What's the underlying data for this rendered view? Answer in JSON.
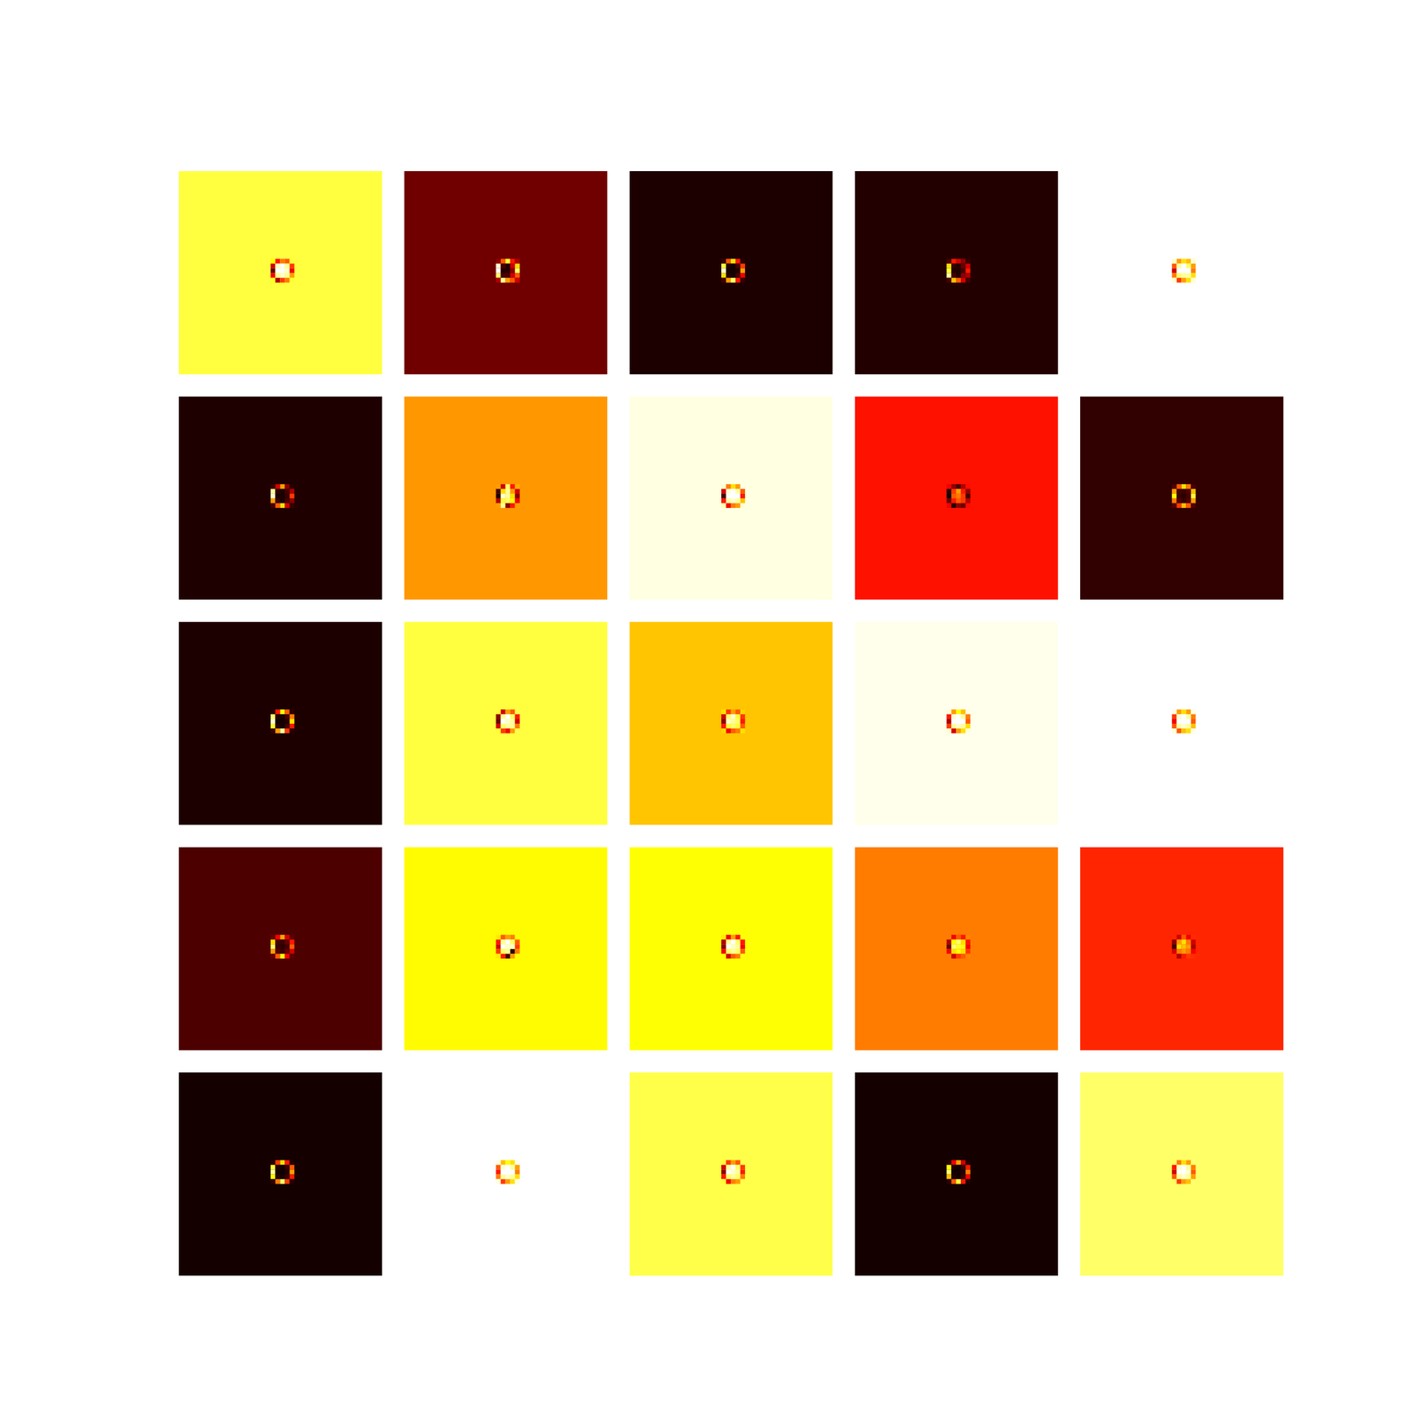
{
  "chart_data": {
    "type": "heatmap",
    "color": "hot",
    "zlim": [
      0,
      1
    ],
    "tick_labels": false,
    "panels": [
      {
        "background": 0.81,
        "cells": [
          [
            0.75,
            0.4,
            0.55,
            0.5,
            0.8
          ],
          [
            0.3,
            0.95,
            1.0,
            0.9,
            0.45
          ],
          [
            0.15,
            1.0,
            1.0,
            0.95,
            0.35
          ],
          [
            0.35,
            0.9,
            0.95,
            0.9,
            0.6
          ],
          [
            0.78,
            0.25,
            0.45,
            0.55,
            0.8
          ]
        ]
      },
      {
        "background": 0.16,
        "cells": [
          [
            0.2,
            0.5,
            0.8,
            0.4,
            0.25
          ],
          [
            0.95,
            0.1,
            0.05,
            0.3,
            0.7
          ],
          [
            1.0,
            0.05,
            0.05,
            0.2,
            0.85
          ],
          [
            0.85,
            0.1,
            0.1,
            0.3,
            0.5
          ],
          [
            0.25,
            0.9,
            0.6,
            0.5,
            0.3
          ]
        ]
      },
      {
        "background": 0.04,
        "cells": [
          [
            0.08,
            0.5,
            0.7,
            0.4,
            0.06
          ],
          [
            0.8,
            0.05,
            0.03,
            0.1,
            0.45
          ],
          [
            0.95,
            0.03,
            0.03,
            0.05,
            0.6
          ],
          [
            0.7,
            0.05,
            0.03,
            0.1,
            0.35
          ],
          [
            0.1,
            0.6,
            0.85,
            0.4,
            0.08
          ]
        ]
      },
      {
        "background": 0.05,
        "cells": [
          [
            0.1,
            0.4,
            0.3,
            0.2,
            0.08
          ],
          [
            0.7,
            0.08,
            0.05,
            0.15,
            0.3
          ],
          [
            0.8,
            0.05,
            0.05,
            0.1,
            0.4
          ],
          [
            0.9,
            0.1,
            0.05,
            0.2,
            0.25
          ],
          [
            0.1,
            0.65,
            0.5,
            0.3,
            0.1
          ]
        ]
      },
      {
        "background": 1.0,
        "cells": [
          [
            0.95,
            0.6,
            0.7,
            0.65,
            0.95
          ],
          [
            0.5,
            0.9,
            1.0,
            0.85,
            0.6
          ],
          [
            0.3,
            1.0,
            1.0,
            1.0,
            0.55
          ],
          [
            0.55,
            0.85,
            0.9,
            0.9,
            0.7
          ],
          [
            0.95,
            0.45,
            0.6,
            0.7,
            0.95
          ]
        ]
      },
      {
        "background": 0.045,
        "cells": [
          [
            0.08,
            0.3,
            0.6,
            0.2,
            0.06
          ],
          [
            0.9,
            0.06,
            0.04,
            0.1,
            0.25
          ],
          [
            0.95,
            0.04,
            0.04,
            0.08,
            0.45
          ],
          [
            0.6,
            0.08,
            0.04,
            0.1,
            0.2
          ],
          [
            0.1,
            0.5,
            0.7,
            0.3,
            0.08
          ]
        ]
      },
      {
        "background": 0.59,
        "cells": [
          [
            0.6,
            0.3,
            0.85,
            0.4,
            0.62
          ],
          [
            0.1,
            0.7,
            0.9,
            0.6,
            0.3
          ],
          [
            0.05,
            0.95,
            0.9,
            0.7,
            0.2
          ],
          [
            0.25,
            0.8,
            0.85,
            0.75,
            0.35
          ],
          [
            0.6,
            0.9,
            0.2,
            0.4,
            0.6
          ]
        ]
      },
      {
        "background": 0.97,
        "cells": [
          [
            0.95,
            0.55,
            0.7,
            0.6,
            0.97
          ],
          [
            0.3,
            0.95,
            1.0,
            0.9,
            0.5
          ],
          [
            0.1,
            1.0,
            1.0,
            1.0,
            0.4
          ],
          [
            0.4,
            0.9,
            0.95,
            0.9,
            0.65
          ],
          [
            0.92,
            0.35,
            0.55,
            0.6,
            0.95
          ]
        ]
      },
      {
        "background": 0.39,
        "cells": [
          [
            0.35,
            0.2,
            0.1,
            0.25,
            0.38
          ],
          [
            0.05,
            0.45,
            0.6,
            0.4,
            0.2
          ],
          [
            0.02,
            0.5,
            0.55,
            0.45,
            0.1
          ],
          [
            0.15,
            0.4,
            0.5,
            0.45,
            0.25
          ],
          [
            0.35,
            0.05,
            0.2,
            0.15,
            0.38
          ]
        ]
      },
      {
        "background": 0.07,
        "cells": [
          [
            0.12,
            0.5,
            0.7,
            0.55,
            0.1
          ],
          [
            0.6,
            0.1,
            0.08,
            0.12,
            0.65
          ],
          [
            0.75,
            0.08,
            0.06,
            0.1,
            0.8
          ],
          [
            0.55,
            0.12,
            0.08,
            0.12,
            0.6
          ],
          [
            0.12,
            0.45,
            0.65,
            0.5,
            0.12
          ]
        ]
      },
      {
        "background": 0.04,
        "cells": [
          [
            0.06,
            0.4,
            0.75,
            0.5,
            0.06
          ],
          [
            0.85,
            0.05,
            0.03,
            0.1,
            0.55
          ],
          [
            0.95,
            0.03,
            0.03,
            0.05,
            0.7
          ],
          [
            0.8,
            0.05,
            0.03,
            0.1,
            0.4
          ],
          [
            0.08,
            0.6,
            0.9,
            0.45,
            0.06
          ]
        ]
      },
      {
        "background": 0.81,
        "cells": [
          [
            0.8,
            0.3,
            0.6,
            0.5,
            0.82
          ],
          [
            0.2,
            0.9,
            1.0,
            0.85,
            0.4
          ],
          [
            0.15,
            1.0,
            0.95,
            0.9,
            0.3
          ],
          [
            0.3,
            0.85,
            0.9,
            0.9,
            0.55
          ],
          [
            0.8,
            0.45,
            0.35,
            0.6,
            0.82
          ]
        ]
      },
      {
        "background": 0.66,
        "cells": [
          [
            0.7,
            0.45,
            0.6,
            0.5,
            0.68
          ],
          [
            0.3,
            0.85,
            0.95,
            0.8,
            0.45
          ],
          [
            0.2,
            0.95,
            0.9,
            0.85,
            0.4
          ],
          [
            0.4,
            0.8,
            0.85,
            0.8,
            0.5
          ],
          [
            0.68,
            0.35,
            0.5,
            0.55,
            0.7
          ]
        ]
      },
      {
        "background": 0.98,
        "cells": [
          [
            0.96,
            0.6,
            0.75,
            0.65,
            0.97
          ],
          [
            0.4,
            0.95,
            1.0,
            0.9,
            0.55
          ],
          [
            0.25,
            1.0,
            1.0,
            1.0,
            0.5
          ],
          [
            0.45,
            0.9,
            0.95,
            0.9,
            0.7
          ],
          [
            0.95,
            0.3,
            0.6,
            0.7,
            0.96
          ]
        ]
      },
      {
        "background": 1.0,
        "cells": [
          [
            0.97,
            0.6,
            0.7,
            0.6,
            0.97
          ],
          [
            0.45,
            0.95,
            1.0,
            0.9,
            0.55
          ],
          [
            0.35,
            1.0,
            1.0,
            1.0,
            0.5
          ],
          [
            0.5,
            0.9,
            0.95,
            0.9,
            0.65
          ],
          [
            0.96,
            0.5,
            0.65,
            0.7,
            0.97
          ]
        ]
      },
      {
        "background": 0.11,
        "cells": [
          [
            0.15,
            0.35,
            0.6,
            0.3,
            0.14
          ],
          [
            0.7,
            0.1,
            0.08,
            0.15,
            0.4
          ],
          [
            0.85,
            0.08,
            0.06,
            0.1,
            0.5
          ],
          [
            0.6,
            0.12,
            0.08,
            0.15,
            0.3
          ],
          [
            0.14,
            0.5,
            0.75,
            0.35,
            0.13
          ]
        ]
      },
      {
        "background": 0.74,
        "cells": [
          [
            0.72,
            0.5,
            0.6,
            0.55,
            0.74
          ],
          [
            0.4,
            0.9,
            1.0,
            0.85,
            0.5
          ],
          [
            0.3,
            1.0,
            0.95,
            0.95,
            0.45
          ],
          [
            0.45,
            0.85,
            0.9,
            0.05,
            0.55
          ],
          [
            0.72,
            0.4,
            0.1,
            0.6,
            0.74
          ]
        ]
      },
      {
        "background": 0.75,
        "cells": [
          [
            0.72,
            0.35,
            0.6,
            0.4,
            0.76
          ],
          [
            0.25,
            0.9,
            1.0,
            0.85,
            0.4
          ],
          [
            0.2,
            1.0,
            0.95,
            0.9,
            0.35
          ],
          [
            0.35,
            0.85,
            0.9,
            0.85,
            0.5
          ],
          [
            0.74,
            0.3,
            0.5,
            0.55,
            0.76
          ]
        ]
      },
      {
        "background": 0.55,
        "cells": [
          [
            0.55,
            0.35,
            0.5,
            0.4,
            0.56
          ],
          [
            0.25,
            0.75,
            0.85,
            0.7,
            0.4
          ],
          [
            0.15,
            0.85,
            0.8,
            0.75,
            0.35
          ],
          [
            0.35,
            0.7,
            0.75,
            0.7,
            0.45
          ],
          [
            0.55,
            0.3,
            0.45,
            0.5,
            0.56
          ]
        ]
      },
      {
        "background": 0.42,
        "cells": [
          [
            0.42,
            0.3,
            0.5,
            0.35,
            0.43
          ],
          [
            0.2,
            0.6,
            0.7,
            0.55,
            0.3
          ],
          [
            0.1,
            0.7,
            0.65,
            0.6,
            0.25
          ],
          [
            0.3,
            0.55,
            0.6,
            0.55,
            0.35
          ],
          [
            0.42,
            0.25,
            0.4,
            0.45,
            0.43
          ]
        ]
      },
      {
        "background": 0.03,
        "cells": [
          [
            0.06,
            0.45,
            0.7,
            0.4,
            0.05
          ],
          [
            0.8,
            0.04,
            0.03,
            0.08,
            0.5
          ],
          [
            0.9,
            0.03,
            0.02,
            0.05,
            0.6
          ],
          [
            0.75,
            0.05,
            0.03,
            0.08,
            0.4
          ],
          [
            0.07,
            0.55,
            0.85,
            0.45,
            0.06
          ]
        ]
      },
      {
        "background": 1.0,
        "cells": [
          [
            0.97,
            0.65,
            0.75,
            0.7,
            0.98
          ],
          [
            0.5,
            0.95,
            1.0,
            0.9,
            0.6
          ],
          [
            0.4,
            1.0,
            1.0,
            1.0,
            0.55
          ],
          [
            0.55,
            0.9,
            0.95,
            0.9,
            0.7
          ],
          [
            0.97,
            0.45,
            0.6,
            0.7,
            0.98
          ]
        ]
      },
      {
        "background": 0.82,
        "cells": [
          [
            0.8,
            0.45,
            0.6,
            0.5,
            0.82
          ],
          [
            0.3,
            0.9,
            1.0,
            0.85,
            0.45
          ],
          [
            0.2,
            1.0,
            0.95,
            0.9,
            0.4
          ],
          [
            0.4,
            0.85,
            0.9,
            0.85,
            0.55
          ],
          [
            0.8,
            0.35,
            0.55,
            0.6,
            0.82
          ]
        ]
      },
      {
        "background": 0.03,
        "cells": [
          [
            0.05,
            0.35,
            0.6,
            0.3,
            0.05
          ],
          [
            0.75,
            0.04,
            0.03,
            0.08,
            0.4
          ],
          [
            0.85,
            0.03,
            0.02,
            0.05,
            0.55
          ],
          [
            0.65,
            0.05,
            0.03,
            0.08,
            0.35
          ],
          [
            0.06,
            0.5,
            0.8,
            0.4,
            0.05
          ]
        ]
      },
      {
        "background": 0.85,
        "cells": [
          [
            0.84,
            0.55,
            0.7,
            0.6,
            0.86
          ],
          [
            0.4,
            0.95,
            1.0,
            0.9,
            0.55
          ],
          [
            0.3,
            1.0,
            1.0,
            0.95,
            0.5
          ],
          [
            0.5,
            0.9,
            0.95,
            0.9,
            0.6
          ],
          [
            0.84,
            0.45,
            0.6,
            0.65,
            0.86
          ]
        ]
      }
    ]
  }
}
